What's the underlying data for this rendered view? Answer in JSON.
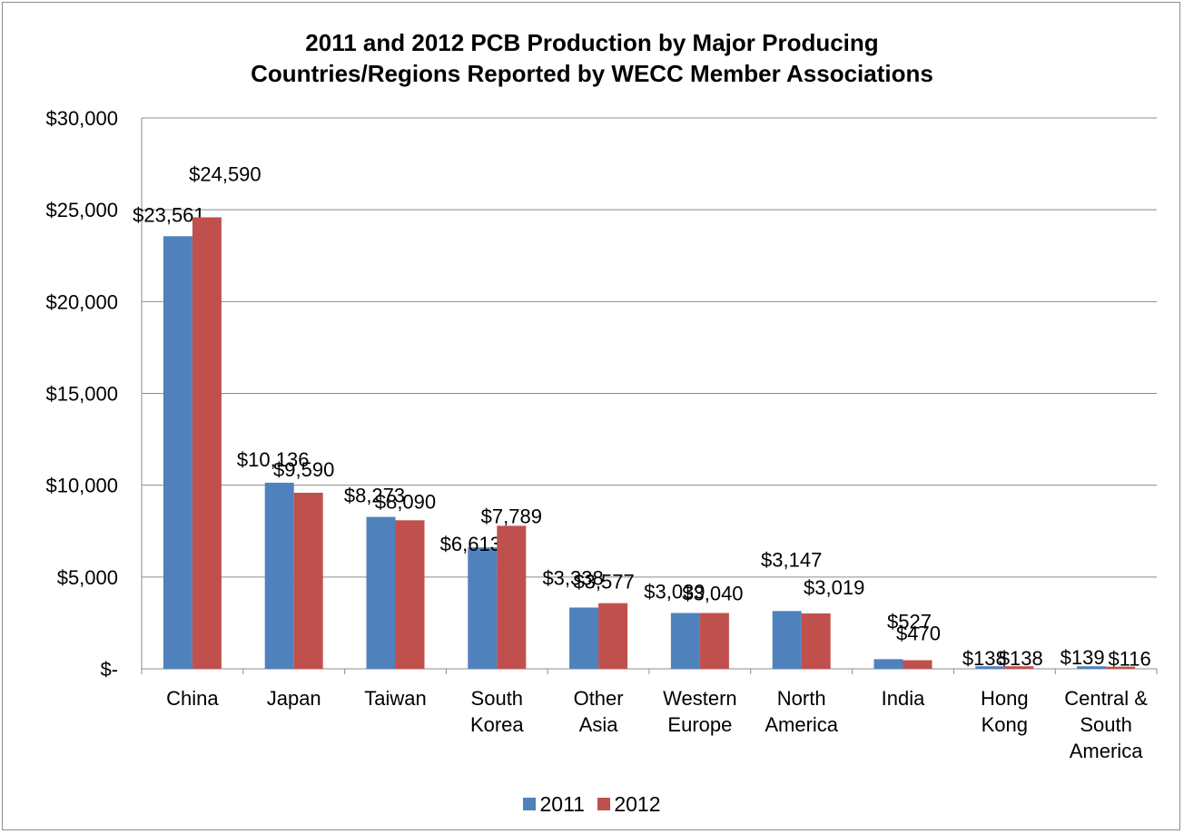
{
  "chart_data": {
    "type": "bar",
    "title_lines": [
      "2011 and 2012 PCB Production by Major Producing",
      "Countries/Regions Reported by WECC Member Associations"
    ],
    "categories": [
      [
        "China"
      ],
      [
        "Japan"
      ],
      [
        "Taiwan"
      ],
      [
        "South",
        "Korea"
      ],
      [
        "Other",
        "Asia"
      ],
      [
        "Western",
        "Europe"
      ],
      [
        "North",
        "America"
      ],
      [
        "India"
      ],
      [
        "Hong",
        "Kong"
      ],
      [
        "Central &",
        "South",
        "America"
      ]
    ],
    "series": [
      {
        "name": "2011",
        "color": "#4f81bd",
        "values": [
          23561,
          10136,
          8273,
          6613,
          3338,
          3039,
          3147,
          527,
          138,
          139
        ],
        "labels": [
          "$23,561",
          "$10,136",
          "$8,273",
          "$6,613",
          "$3,338",
          "$3,039",
          "$3,147",
          "$527",
          "$138",
          "$139"
        ]
      },
      {
        "name": "2012",
        "color": "#c0504d",
        "values": [
          24590,
          9590,
          8090,
          7789,
          3577,
          3040,
          3019,
          470,
          138,
          116
        ],
        "labels": [
          "$24,590",
          "$9,590",
          "$8,090",
          "$7,789",
          "$3,577",
          "$3,040",
          "$3,019",
          "$470",
          "$138",
          "$116"
        ]
      }
    ],
    "ylim": [
      0,
      30000
    ],
    "yticks": [
      0,
      5000,
      10000,
      15000,
      20000,
      25000,
      30000
    ],
    "ytick_labels": [
      "$-",
      "$5,000",
      "$10,000",
      "$15,000",
      "$20,000",
      "$25,000",
      "$30,000"
    ],
    "grid": true,
    "legend_position": "bottom"
  }
}
